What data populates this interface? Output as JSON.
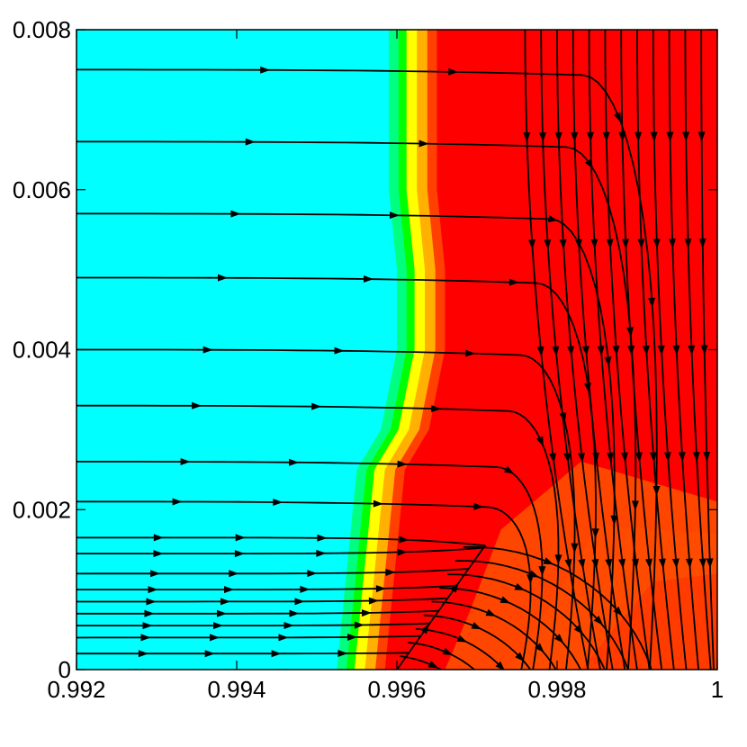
{
  "chart_data": {
    "type": "contour",
    "title": "",
    "xlabel": "",
    "ylabel": "",
    "xlim": [
      0.992,
      1.0
    ],
    "ylim": [
      0,
      0.008
    ],
    "x_ticks": [
      0.992,
      0.994,
      0.996,
      0.998,
      1.0
    ],
    "x_tick_labels": [
      "0.992",
      "0.994",
      "0.996",
      "0.998",
      "1"
    ],
    "y_ticks": [
      0,
      0.002,
      0.004,
      0.006,
      0.008
    ],
    "y_tick_labels": [
      "0",
      "0.002",
      "0.004",
      "0.006",
      "0.008"
    ],
    "colormap": [
      "#00ffff",
      "#00ff80",
      "#00ff00",
      "#ffff00",
      "#ffb000",
      "#ff4000",
      "#ff0000"
    ],
    "contour_front": [
      [
        0.99525,
        0.0
      ],
      [
        0.9953,
        0.0005
      ],
      [
        0.99535,
        0.001
      ],
      [
        0.9954,
        0.0015
      ],
      [
        0.99545,
        0.002
      ],
      [
        0.9955,
        0.0025
      ],
      [
        0.9958,
        0.003
      ],
      [
        0.996,
        0.004
      ],
      [
        0.996,
        0.005
      ],
      [
        0.9959,
        0.006
      ],
      [
        0.9959,
        0.007
      ],
      [
        0.9959,
        0.008
      ]
    ],
    "stagnation_point": [
      0.9971,
      0.00155
    ],
    "attachment_point": [
      0.996,
      0.0
    ],
    "left_streamline_start_y": [
      0.0075,
      0.0066,
      0.0057,
      0.0049,
      0.004,
      0.0033,
      0.0026,
      0.0021,
      0.00165,
      0.00145,
      0.0012,
      0.001,
      0.00085,
      0.0007,
      0.00055,
      0.0004,
      0.0002
    ],
    "top_streamline_start_x": [
      0.9976,
      0.9978,
      0.998,
      0.9982,
      0.9984,
      0.9986,
      0.9988,
      0.999,
      0.9992,
      0.9994,
      0.9996,
      0.9998
    ]
  }
}
